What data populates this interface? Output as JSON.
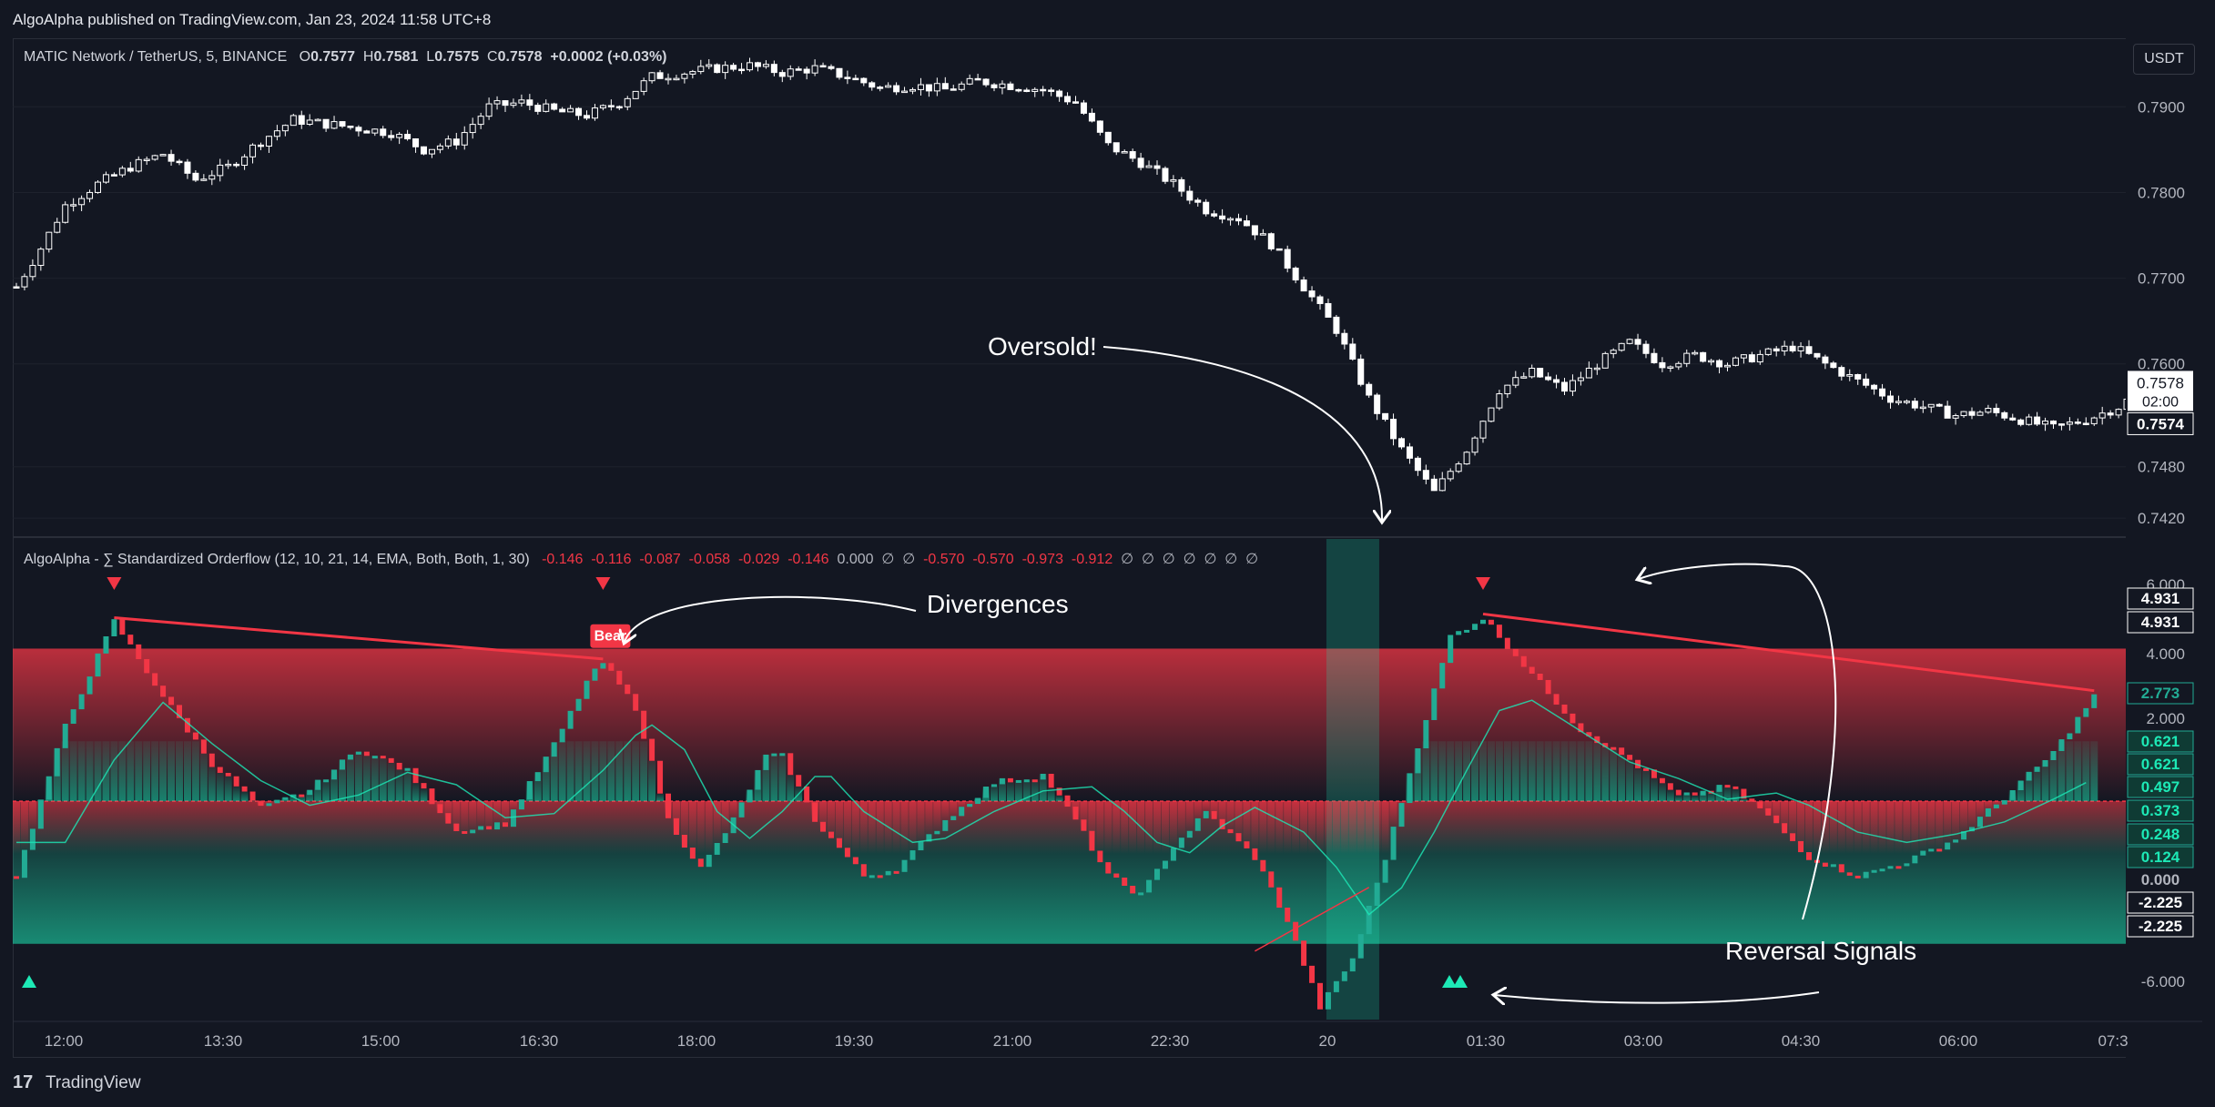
{
  "header": {
    "published": "AlgoAlpha published on TradingView.com, Jan 23, 2024 11:58 UTC+8"
  },
  "price_legend": {
    "symbol": "MATIC Network / TetherUS, 5, BINANCE",
    "o_label": "O",
    "o": "0.7577",
    "h_label": "H",
    "h": "0.7581",
    "l_label": "L",
    "l": "0.7575",
    "c_label": "C",
    "c": "0.7578",
    "change": "+0.0002 (+0.03%)"
  },
  "currency_button": "USDT",
  "indicator_legend": {
    "name": "AlgoAlpha - ∑ Standardized Orderflow (12, 10, 21, 14, EMA, Both, Both, 1, 30)",
    "values": [
      "-0.146",
      "-0.116",
      "-0.087",
      "-0.058",
      "-0.029",
      "-0.146",
      "0.000",
      "∅",
      "∅",
      "-0.570",
      "-0.570",
      "-0.973",
      "-0.912",
      "∅",
      "∅",
      "∅",
      "∅",
      "∅",
      "∅",
      "∅"
    ]
  },
  "annotations": {
    "oversold": "Oversold!",
    "divergences": "Divergences",
    "reversal": "Reversal Signals",
    "bear_label": "Bear"
  },
  "price_axis": {
    "ticks": [
      "0.7900",
      "0.7800",
      "0.7700",
      "0.7600",
      "0.7480",
      "0.7420"
    ],
    "last_price": "0.7578",
    "countdown": "02:00",
    "low_tag": "0.7574"
  },
  "osc_axis": {
    "ticks": [
      "6.000",
      "4.000",
      "2.000",
      "0.000",
      "-6.000"
    ],
    "tags": [
      "4.931",
      "4.931",
      "2.773",
      "0.621",
      "0.621",
      "0.497",
      "0.373",
      "0.248",
      "0.124",
      "0.000",
      "-2.225",
      "-2.225"
    ]
  },
  "time_axis": [
    "12:00",
    "13:30",
    "15:00",
    "16:30",
    "18:00",
    "19:30",
    "21:00",
    "22:30",
    "20",
    "01:30",
    "03:00",
    "04:30",
    "06:00",
    "07:3"
  ],
  "footer": {
    "logo": "17",
    "brand": "TradingView"
  },
  "colors": {
    "background": "#131722",
    "bull": "#22ab94",
    "bull_bright": "#1de9b6",
    "bear": "#f23645",
    "candle_up": "#ffffff",
    "candle_down": "#ffffff",
    "grid": "#1e222d"
  },
  "chart_data": [
    {
      "type": "candlestick",
      "title": "MATIC Network / TetherUS, 5, BINANCE",
      "ylabel": "USDT",
      "ylim": [
        0.74,
        0.798
      ],
      "x_ticks": [
        "12:00",
        "13:30",
        "15:00",
        "16:30",
        "18:00",
        "19:30",
        "21:00",
        "22:30",
        "20",
        "01:30",
        "03:00",
        "04:30",
        "06:00",
        "07:3"
      ],
      "close_path": [
        [
          0,
          0.769
        ],
        [
          3,
          0.7735
        ],
        [
          6,
          0.7785
        ],
        [
          10,
          0.781
        ],
        [
          14,
          0.783
        ],
        [
          18,
          0.7845
        ],
        [
          22,
          0.7815
        ],
        [
          26,
          0.783
        ],
        [
          30,
          0.786
        ],
        [
          34,
          0.7885
        ],
        [
          38,
          0.788
        ],
        [
          42,
          0.7875
        ],
        [
          46,
          0.787
        ],
        [
          50,
          0.785
        ],
        [
          54,
          0.786
        ],
        [
          58,
          0.79
        ],
        [
          62,
          0.7905
        ],
        [
          66,
          0.7895
        ],
        [
          70,
          0.789
        ],
        [
          74,
          0.7905
        ],
        [
          78,
          0.7935
        ],
        [
          82,
          0.794
        ],
        [
          86,
          0.7945
        ],
        [
          90,
          0.7948
        ],
        [
          94,
          0.794
        ],
        [
          98,
          0.7945
        ],
        [
          102,
          0.7935
        ],
        [
          106,
          0.7922
        ],
        [
          110,
          0.7925
        ],
        [
          114,
          0.792
        ],
        [
          118,
          0.793
        ],
        [
          122,
          0.7925
        ],
        [
          126,
          0.792
        ],
        [
          130,
          0.7905
        ],
        [
          134,
          0.7855
        ],
        [
          138,
          0.7835
        ],
        [
          142,
          0.781
        ],
        [
          146,
          0.778
        ],
        [
          150,
          0.777
        ],
        [
          154,
          0.774
        ],
        [
          158,
          0.769
        ],
        [
          162,
          0.764
        ],
        [
          166,
          0.756
        ],
        [
          170,
          0.75
        ],
        [
          174,
          0.745
        ],
        [
          178,
          0.75
        ],
        [
          182,
          0.757
        ],
        [
          186,
          0.759
        ],
        [
          190,
          0.757
        ],
        [
          194,
          0.76
        ],
        [
          198,
          0.7625
        ],
        [
          202,
          0.76
        ],
        [
          206,
          0.761
        ],
        [
          210,
          0.76
        ],
        [
          214,
          0.761
        ],
        [
          218,
          0.762
        ],
        [
          222,
          0.76
        ],
        [
          226,
          0.758
        ],
        [
          230,
          0.756
        ],
        [
          234,
          0.755
        ],
        [
          238,
          0.754
        ],
        [
          242,
          0.7545
        ],
        [
          246,
          0.7535
        ],
        [
          250,
          0.7525
        ],
        [
          254,
          0.7535
        ],
        [
          258,
          0.755
        ],
        [
          262,
          0.7578
        ]
      ]
    },
    {
      "type": "area",
      "title": "AlgoAlpha - ∑ Standardized Orderflow (12, 10, 21, 14, EMA, Both, Both, 1, 30)",
      "ylim": [
        -6.8,
        7.0
      ],
      "levels": {
        "overbought": 4.0,
        "zero": 0.0,
        "oversold": -4.0
      },
      "series": [
        {
          "points": [
            [
              0,
              -2.0
            ],
            [
              6,
              2.0
            ],
            [
              12,
              4.8
            ],
            [
              18,
              2.8
            ],
            [
              24,
              1.0
            ],
            [
              30,
              -0.2
            ],
            [
              36,
              0.3
            ],
            [
              42,
              1.4
            ],
            [
              48,
              0.8
            ],
            [
              54,
              -0.8
            ],
            [
              60,
              -0.6
            ],
            [
              66,
              1.5
            ],
            [
              70,
              3.2
            ],
            [
              72,
              3.7
            ],
            [
              76,
              2.5
            ],
            [
              80,
              -0.5
            ],
            [
              84,
              -1.8
            ],
            [
              88,
              -0.5
            ],
            [
              92,
              1.2
            ],
            [
              94,
              1.2
            ],
            [
              98,
              -0.5
            ],
            [
              104,
              -2.0
            ],
            [
              108,
              -1.8
            ],
            [
              114,
              -0.5
            ],
            [
              120,
              0.5
            ],
            [
              126,
              0.7
            ],
            [
              130,
              -0.5
            ],
            [
              134,
              -2.0
            ],
            [
              138,
              -2.5
            ],
            [
              142,
              -1.2
            ],
            [
              146,
              -0.3
            ],
            [
              152,
              -1.5
            ],
            [
              156,
              -3.2
            ],
            [
              160,
              -5.5
            ],
            [
              164,
              -4.2
            ],
            [
              168,
              -1.5
            ],
            [
              172,
              1.5
            ],
            [
              176,
              4.4
            ],
            [
              180,
              4.9
            ],
            [
              186,
              3.4
            ],
            [
              192,
              1.9
            ],
            [
              198,
              1.1
            ],
            [
              204,
              0.1
            ],
            [
              210,
              0.4
            ],
            [
              214,
              -0.2
            ],
            [
              220,
              -1.5
            ],
            [
              226,
              -2.0
            ],
            [
              232,
              -1.6
            ],
            [
              238,
              -1.0
            ],
            [
              244,
              0.1
            ],
            [
              250,
              1.3
            ],
            [
              255,
              2.8
            ]
          ]
        }
      ],
      "signals": {
        "bear_triangles": 3,
        "bull_triangles": 3,
        "bear_label": "Bear"
      }
    }
  ]
}
